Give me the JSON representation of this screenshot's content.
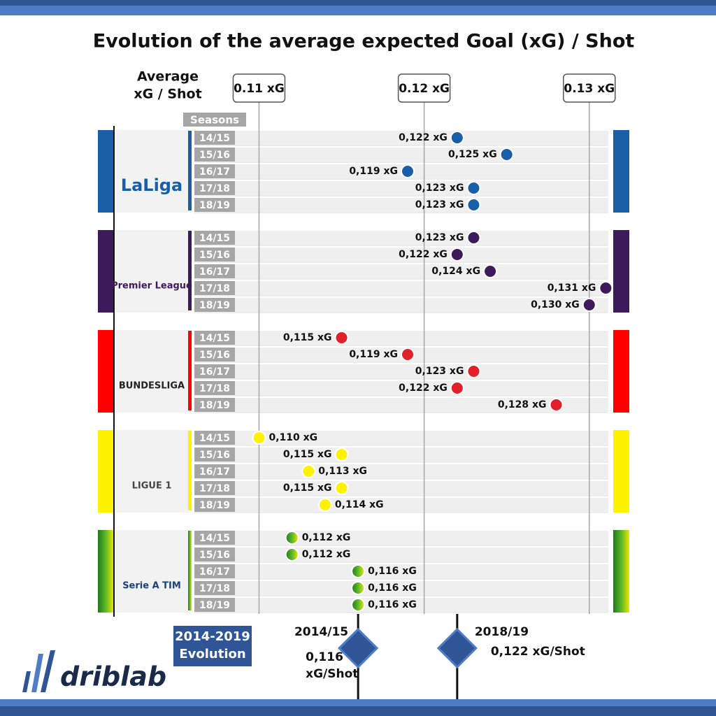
{
  "chart_data": {
    "type": "dot",
    "title": "Evolution of the average expected Goal (xG) / Shot",
    "axis_label_lines": [
      "Average",
      "xG / Shot"
    ],
    "seasons_label": "Seasons",
    "categories": [
      "14/15",
      "15/16",
      "16/17",
      "17/18",
      "18/19"
    ],
    "xlim": [
      0.106,
      0.132
    ],
    "xticks": [
      {
        "value": 0.11,
        "label": "0.11 xG"
      },
      {
        "value": 0.12,
        "label": "0.12 xG"
      },
      {
        "value": 0.13,
        "label": "0.13 xG"
      }
    ],
    "grid": true,
    "series": [
      {
        "name": "LaLiga",
        "color": "#1b5ea8",
        "values": [
          0.122,
          0.125,
          0.119,
          0.123,
          0.123
        ],
        "value_labels": [
          "0,122 xG",
          "0,125 xG",
          "0,119 xG",
          "0,123 xG",
          "0,123 xG"
        ]
      },
      {
        "name": "Premier League",
        "color": "#3d1a5a",
        "values": [
          0.123,
          0.122,
          0.124,
          0.131,
          0.13
        ],
        "value_labels": [
          "0,123 xG",
          "0,122 xG",
          "0,124 xG",
          "0,131 xG",
          "0,130 xG"
        ]
      },
      {
        "name": "BUNDESLIGA",
        "color": "#e2202a",
        "values": [
          0.115,
          0.119,
          0.123,
          0.122,
          0.128
        ],
        "value_labels": [
          "0,115 xG",
          "0,119 xG",
          "0,123 xG",
          "0,122 xG",
          "0,128 xG"
        ]
      },
      {
        "name": "LIGUE 1",
        "color": "#fff200",
        "values": [
          0.11,
          0.115,
          0.113,
          0.115,
          0.114
        ],
        "value_labels": [
          "0,110 xG",
          "0,115 xG",
          "0,113 xG",
          "0,115 xG",
          "0,114 xG"
        ]
      },
      {
        "name": "Serie A TIM",
        "color": "#2e8b1e",
        "values": [
          0.112,
          0.112,
          0.116,
          0.116,
          0.116
        ],
        "value_labels": [
          "0,112 xG",
          "0,112 xG",
          "0,116 xG",
          "0,116 xG",
          "0,116 xG"
        ]
      }
    ],
    "evolution_label_lines": [
      "2014-2019",
      "Evolution"
    ],
    "evolution": [
      {
        "label": "2014/15",
        "value": 0.116,
        "value_label_lines": [
          "0,116",
          "xG/Shot"
        ]
      },
      {
        "label": "2018/19",
        "value": 0.122,
        "value_label_lines": [
          "0,122 xG/Shot"
        ]
      }
    ],
    "brand": "driblab"
  }
}
